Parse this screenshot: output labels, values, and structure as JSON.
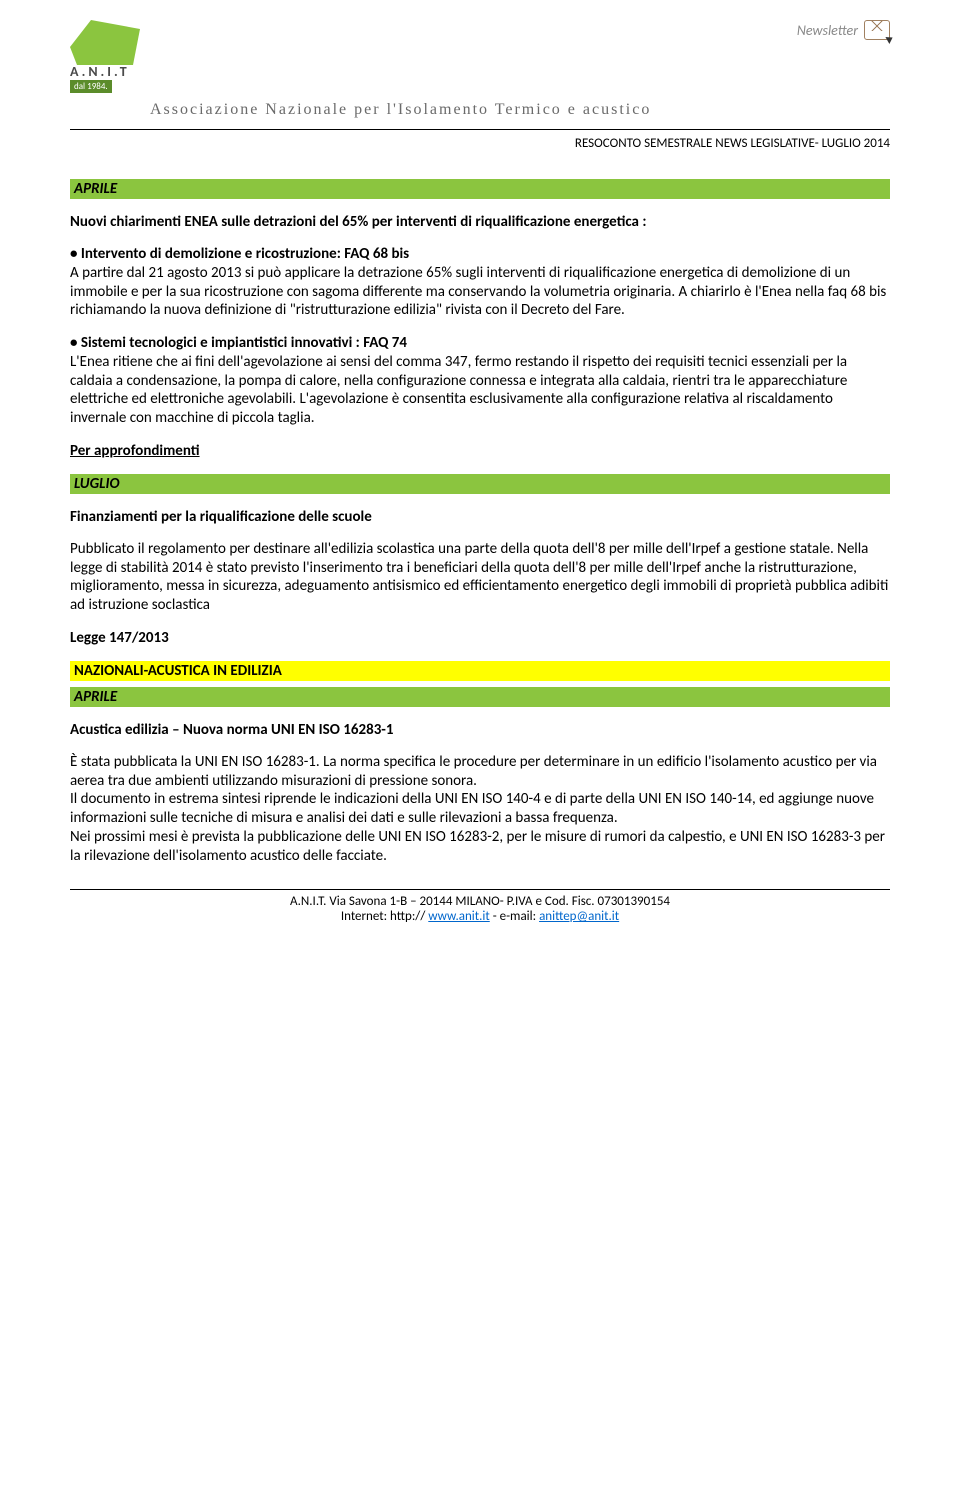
{
  "header": {
    "logo_name": "A.N.I.T",
    "logo_sub": "dal 1984.",
    "newsletter_label": "Newsletter",
    "association_line": "Associazione Nazionale per l'Isolamento Termico e acustico",
    "doc_title": "RESOCONTO SEMESTRALE NEWS LEGISLATIVE- LUGLIO 2014"
  },
  "sections": {
    "aprile1": {
      "bar": "APRILE",
      "title": "Nuovi chiarimenti ENEA sulle detrazioni del 65% per interventi di riqualificazione energetica :",
      "p1_bold": "• Intervento di demolizione e ricostruzione: FAQ 68 bis",
      "p1": "A partire dal 21 agosto 2013 si può applicare la detrazione 65% sugli interventi di riqualificazione energetica di demolizione di un immobile e per la sua ricostruzione con sagoma differente ma conservando la volumetria originaria. A chiarirlo è l'Enea nella faq 68 bis richiamando la nuova definizione di \"ristrutturazione edilizia\" rivista con il Decreto del Fare.",
      "p2_bold": "• Sistemi tecnologici e impiantistici innovativi : FAQ 74",
      "p2": "L'Enea ritiene che ai fini dell'agevolazione ai sensi del comma 347, fermo restando il rispetto dei requisiti tecnici essenziali per la caldaia a condensazione, la pompa di calore, nella configurazione connessa e integrata alla caldaia, rientri tra le apparecchiature elettriche ed elettroniche agevolabili. L'agevolazione è consentita esclusivamente alla configurazione relativa al riscaldamento invernale con macchine di piccola taglia.",
      "link": "Per approfondimenti"
    },
    "luglio": {
      "bar": "LUGLIO",
      "title": "Finanziamenti per la riqualificazione delle scuole",
      "p": " Pubblicato  il regolamento per destinare all'edilizia scolastica una parte della quota dell'8 per mille dell'Irpef a gestione statale. Nella legge di stabilità 2014 è stato previsto l'inserimento tra i beneficiari della quota dell'8 per mille dell'Irpef anche la ristrutturazione, miglioramento, messa in sicurezza, adeguamento antisismico ed efficientamento energetico degli immobili di proprietà pubblica adibiti ad istruzione soclastica",
      "law": "Legge 147/2013"
    },
    "nazionali": {
      "bar": "NAZIONALI-ACUSTICA IN EDILIZIA"
    },
    "aprile2": {
      "bar": "APRILE",
      "title": "Acustica edilizia – Nuova norma UNI EN ISO 16283-1",
      "p1": "È stata pubblicata la UNI EN ISO 16283-1. La norma specifica le procedure per determinare in un edificio l'isolamento acustico per via aerea tra due ambienti utilizzando misurazioni di pressione sonora.",
      "p2": "Il documento in estrema sintesi riprende le indicazioni della UNI EN ISO 140-4 e di parte della UNI EN ISO 140-14, ed aggiunge nuove informazioni sulle tecniche di misura e analisi dei dati e sulle rilevazioni a bassa frequenza.",
      "p3": "Nei prossimi mesi è prevista la pubblicazione delle UNI EN ISO 16283-2, per le misure di rumori da calpestio, e UNI EN ISO 16283-3 per la rilevazione dell'isolamento acustico delle facciate."
    }
  },
  "footer": {
    "line1": "A.N.I.T. Via Savona 1-B – 20144 MILANO- P.IVA e Cod. Fisc. 07301390154",
    "line2_prefix": "Internet: http:// ",
    "link1": "www.anit.it",
    "line2_mid": "  -  e-mail: ",
    "link2": "anittep@anit.it"
  },
  "colors": {
    "green_bar": "#8bc53f",
    "yellow_bar": "#ffff00",
    "text": "#000000",
    "link": "#0066cc"
  }
}
